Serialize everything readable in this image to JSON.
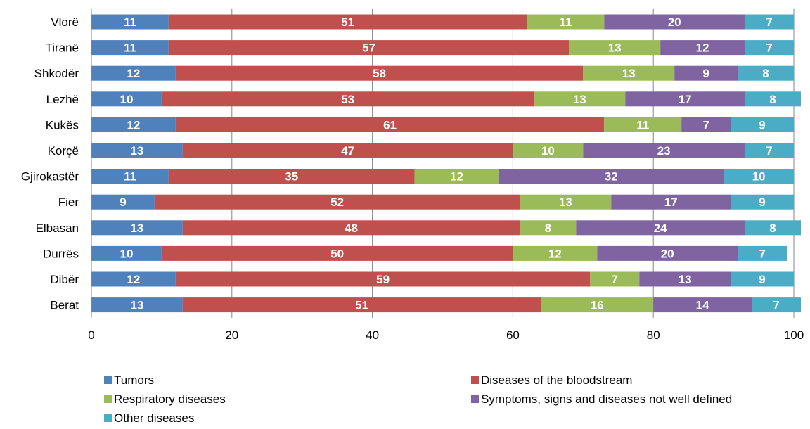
{
  "chart_data": {
    "type": "bar",
    "orientation": "horizontal",
    "stacked": true,
    "title": "",
    "xlabel": "",
    "ylabel": "",
    "xlim": [
      0,
      100
    ],
    "x_ticks": [
      0,
      20,
      40,
      60,
      80,
      100
    ],
    "grid": "vertical",
    "legend_position": "bottom",
    "categories": [
      "Vlorë",
      "Tiranë",
      "Shkodër",
      "Lezhë",
      "Kukës",
      "Korçë",
      "Gjirokastër",
      "Fier",
      "Elbasan",
      "Durrës",
      "Dibër",
      "Berat"
    ],
    "series": [
      {
        "name": "Tumors",
        "color": "#4f81bd",
        "values": [
          11,
          11,
          12,
          10,
          12,
          13,
          11,
          9,
          13,
          10,
          12,
          13
        ]
      },
      {
        "name": "Diseases of the bloodstream",
        "color": "#c0504d",
        "values": [
          51,
          57,
          58,
          53,
          61,
          47,
          35,
          52,
          48,
          50,
          59,
          51
        ]
      },
      {
        "name": "Respiratory diseases",
        "color": "#9bbb59",
        "values": [
          11,
          13,
          13,
          13,
          11,
          10,
          12,
          13,
          8,
          12,
          7,
          16
        ]
      },
      {
        "name": "Symptoms, signs and diseases not well defined",
        "color": "#8064a2",
        "values": [
          20,
          12,
          9,
          17,
          7,
          23,
          32,
          17,
          24,
          20,
          13,
          14
        ]
      },
      {
        "name": "Other diseases",
        "color": "#4bacc6",
        "values": [
          7,
          7,
          8,
          8,
          9,
          7,
          10,
          9,
          8,
          7,
          9,
          7
        ]
      }
    ]
  }
}
